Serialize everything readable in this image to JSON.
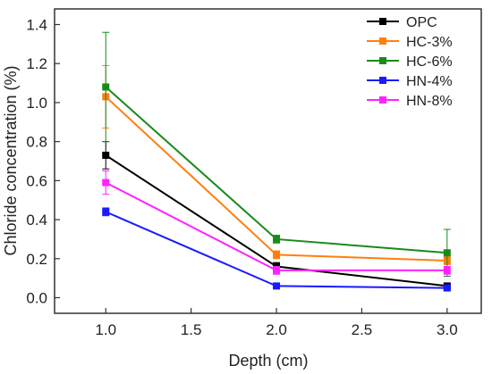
{
  "chart_data": {
    "type": "line",
    "xlabel": "Depth (cm)",
    "ylabel": "Chloride concentration (%)",
    "xlim": [
      0.7,
      3.2
    ],
    "ylim": [
      -0.08,
      1.48
    ],
    "xticks": [
      "1.0",
      "1.5",
      "2.0",
      "2.5",
      "3.0"
    ],
    "xtick_values": [
      1.0,
      1.5,
      2.0,
      2.5,
      3.0
    ],
    "yticks": [
      "0.0",
      "0.2",
      "0.4",
      "0.6",
      "0.8",
      "1.0",
      "1.2",
      "1.4"
    ],
    "ytick_values": [
      0.0,
      0.2,
      0.4,
      0.6,
      0.8,
      1.0,
      1.2,
      1.4
    ],
    "legend_position": "top-right",
    "grid": false,
    "x": [
      1.0,
      2.0,
      3.0
    ],
    "series": [
      {
        "name": "OPC",
        "color": "#000000",
        "values": [
          0.73,
          0.16,
          0.06
        ],
        "error": [
          0.07,
          0.02,
          0.01
        ]
      },
      {
        "name": "HC-3%",
        "color": "#ff7f0e",
        "values": [
          1.03,
          0.22,
          0.19
        ],
        "error": [
          0.16,
          0.02,
          0.02
        ]
      },
      {
        "name": "HC-6%",
        "color": "#1a8a1a",
        "values": [
          1.08,
          0.3,
          0.23
        ],
        "error": [
          0.28,
          0.02,
          0.12
        ]
      },
      {
        "name": "HN-4%",
        "color": "#1a1aff",
        "values": [
          0.44,
          0.06,
          0.05
        ],
        "error": [
          0.02,
          0.01,
          0.01
        ]
      },
      {
        "name": "HN-8%",
        "color": "#ff22ff",
        "values": [
          0.59,
          0.14,
          0.14
        ],
        "error": [
          0.06,
          0.02,
          0.02
        ]
      }
    ]
  }
}
